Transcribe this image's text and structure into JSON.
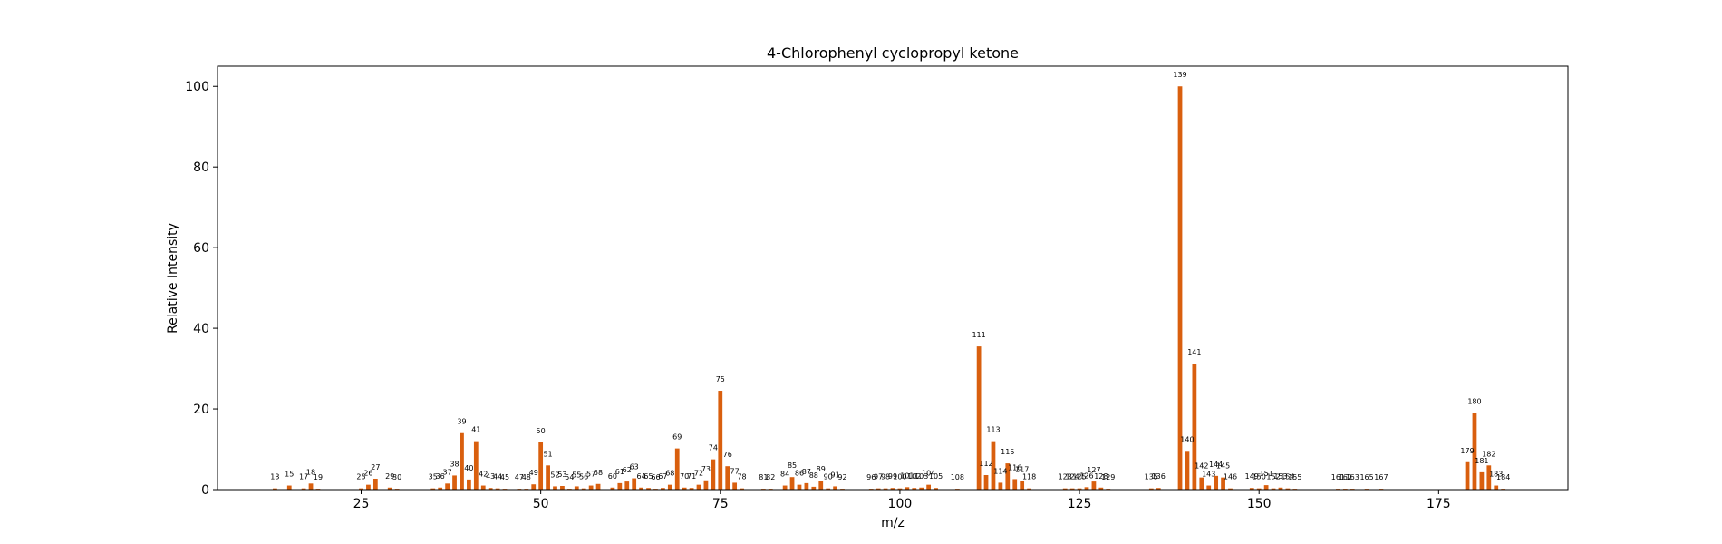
{
  "chart_data": {
    "type": "bar",
    "title": "4-Chlorophenyl cyclopropyl ketone",
    "xlabel": "m/z",
    "ylabel": "Relative Intensity",
    "xlim": [
      5,
      193
    ],
    "ylim": [
      0,
      105
    ],
    "xticks": [
      25,
      50,
      75,
      100,
      125,
      150,
      175
    ],
    "yticks": [
      0,
      20,
      40,
      60,
      80,
      100
    ],
    "grid": false,
    "legend": "none",
    "bar_color": "#d95f0e",
    "series": [
      {
        "x": [
          13,
          15,
          17,
          18,
          19,
          25,
          26,
          27,
          29,
          30,
          35,
          36,
          37,
          38,
          39,
          40,
          41,
          42,
          43,
          44,
          45,
          47,
          48,
          49,
          50,
          51,
          52,
          53,
          54,
          55,
          56,
          57,
          58,
          60,
          61,
          62,
          63,
          64,
          65,
          66,
          67,
          68,
          69,
          70,
          71,
          72,
          73,
          74,
          75,
          76,
          77,
          78,
          81,
          82,
          84,
          85,
          86,
          87,
          88,
          89,
          90,
          91,
          92,
          96,
          97,
          98,
          99,
          100,
          101,
          102,
          103,
          104,
          105,
          108,
          111,
          112,
          113,
          114,
          115,
          116,
          117,
          118,
          123,
          124,
          125,
          126,
          127,
          128,
          129,
          135,
          136,
          139,
          140,
          141,
          142,
          143,
          144,
          145,
          146,
          149,
          150,
          151,
          152,
          153,
          154,
          155,
          161,
          162,
          163,
          165,
          167,
          179,
          180,
          181,
          182,
          183,
          184
        ],
        "y": [
          0.3,
          1.0,
          0.3,
          1.5,
          0.2,
          0.3,
          1.2,
          2.7,
          0.5,
          0.2,
          0.3,
          0.5,
          1.5,
          3.5,
          14.0,
          2.5,
          12.0,
          1.0,
          0.4,
          0.3,
          0.2,
          0.2,
          0.2,
          1.3,
          11.7,
          6.0,
          0.8,
          0.9,
          0.2,
          0.8,
          0.3,
          1.0,
          1.4,
          0.5,
          1.6,
          2.0,
          2.8,
          0.5,
          0.4,
          0.2,
          0.4,
          1.2,
          10.2,
          0.5,
          0.4,
          1.2,
          2.3,
          7.5,
          24.5,
          5.8,
          1.7,
          0.3,
          0.2,
          0.2,
          1.0,
          3.1,
          1.2,
          1.6,
          0.7,
          2.2,
          0.3,
          0.8,
          0.2,
          0.2,
          0.3,
          0.3,
          0.4,
          0.3,
          0.6,
          0.4,
          0.5,
          1.2,
          0.4,
          0.2,
          35.5,
          3.6,
          12.0,
          1.7,
          6.5,
          2.6,
          2.1,
          0.3,
          0.3,
          0.3,
          0.3,
          0.6,
          2.0,
          0.5,
          0.2,
          0.3,
          0.4,
          100.0,
          9.6,
          31.2,
          3.0,
          1.0,
          3.4,
          3.0,
          0.3,
          0.4,
          0.3,
          1.1,
          0.3,
          0.5,
          0.3,
          0.2,
          0.2,
          0.2,
          0.2,
          0.2,
          0.2,
          6.8,
          19.0,
          4.3,
          6.0,
          1.0,
          0.2
        ],
        "labels": [
          "13",
          "15",
          "17",
          "18",
          "19",
          "25",
          "26",
          "27",
          "29",
          "30",
          "35",
          "36",
          "37",
          "38",
          "39",
          "40",
          "41",
          "42",
          "43",
          "44",
          "45",
          "47",
          "48",
          "49",
          "50",
          "51",
          "52",
          "53",
          "54",
          "55",
          "56",
          "57",
          "58",
          "60",
          "61",
          "62",
          "63",
          "64",
          "65",
          "66",
          "67",
          "68",
          "69",
          "70",
          "71",
          "72",
          "73",
          "74",
          "75",
          "76",
          "77",
          "78",
          "81",
          "82",
          "84",
          "85",
          "86",
          "87",
          "88",
          "89",
          "90",
          "91",
          "92",
          "96",
          "97",
          "98",
          "99",
          "100",
          "101",
          "102",
          "103",
          "104",
          "105",
          "108",
          "111",
          "112",
          "113",
          "114",
          "115",
          "116",
          "117",
          "118",
          "123",
          "124",
          "125",
          "126",
          "127",
          "128",
          "129",
          "135",
          "136",
          "139",
          "140",
          "141",
          "142",
          "143",
          "144",
          "145",
          "146",
          "149",
          "150",
          "151",
          "152",
          "153",
          "154",
          "155",
          "161",
          "162",
          "163",
          "165",
          "167",
          "179",
          "180",
          "181",
          "182",
          "183",
          "184"
        ]
      }
    ]
  }
}
